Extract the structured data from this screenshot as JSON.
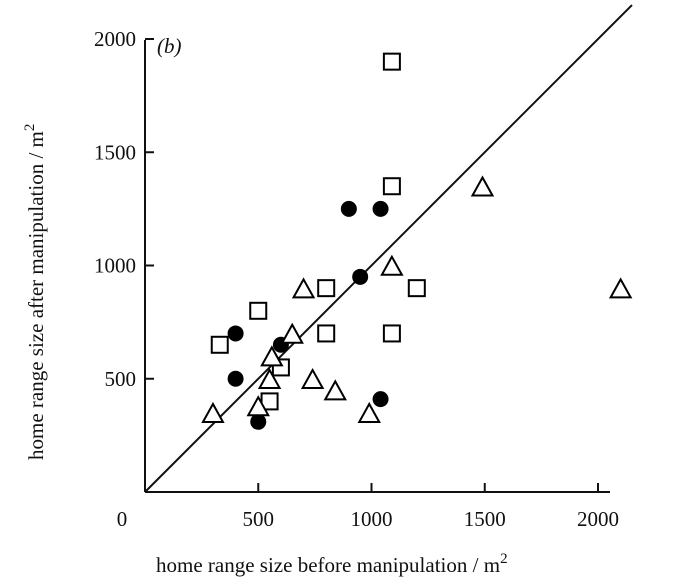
{
  "chart_data": {
    "type": "scatter",
    "panel_label": "(b)",
    "xlabel": "home range size before manipulation / m",
    "xlabel_sup": "2",
    "ylabel": "home range size after manipulation / m",
    "ylabel_sup": "2",
    "xlim": [
      0,
      2150
    ],
    "ylim": [
      0,
      2000
    ],
    "x_ticks": [
      500,
      1000,
      1500,
      2000
    ],
    "y_ticks": [
      500,
      1000,
      1500,
      2000
    ],
    "origin_label": "0",
    "grid": false,
    "reference_line": {
      "x": [
        0,
        2150
      ],
      "y": [
        0,
        2150
      ]
    },
    "series": [
      {
        "marker": "filled-circle",
        "color": "#000000",
        "x": [
          400,
          400,
          500,
          600,
          900,
          950,
          1040,
          1040
        ],
        "y": [
          700,
          500,
          310,
          650,
          1250,
          950,
          1250,
          410
        ]
      },
      {
        "marker": "open-square",
        "color": "#000000",
        "x": [
          330,
          500,
          550,
          600,
          800,
          800,
          1090,
          1090,
          1090,
          1200
        ],
        "y": [
          650,
          800,
          400,
          550,
          900,
          700,
          1900,
          1350,
          700,
          900
        ]
      },
      {
        "marker": "open-triangle",
        "color": "#000000",
        "x": [
          300,
          500,
          550,
          560,
          650,
          700,
          740,
          840,
          990,
          1090,
          1490,
          2100
        ],
        "y": [
          340,
          370,
          490,
          590,
          690,
          890,
          490,
          440,
          340,
          990,
          1340,
          890
        ]
      }
    ]
  }
}
